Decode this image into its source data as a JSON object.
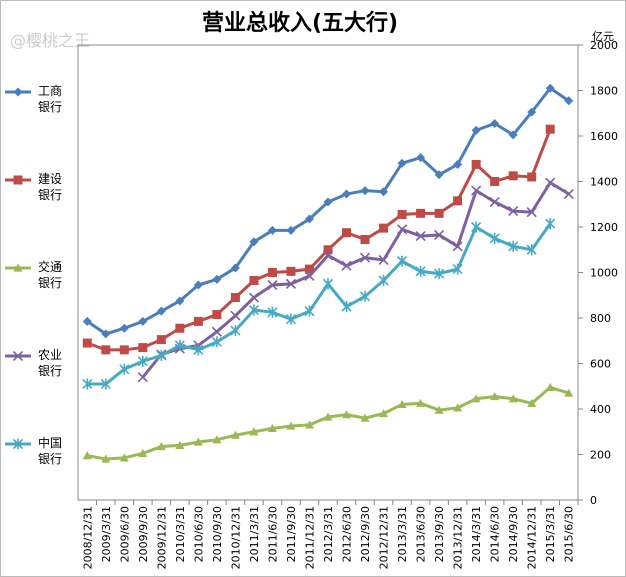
{
  "chart_data": {
    "type": "line",
    "title": "营业总收入(五大行)",
    "watermark": "@樱桃之王",
    "y_unit": "亿元",
    "categories": [
      "2008/12/31",
      "2009/3/31",
      "2009/6/30",
      "2009/9/30",
      "2009/12/31",
      "2010/3/31",
      "2010/6/30",
      "2010/9/30",
      "2010/12/31",
      "2011/3/31",
      "2011/6/30",
      "2011/9/30",
      "2011/12/31",
      "2012/3/31",
      "2012/6/30",
      "2012/9/30",
      "2012/12/31",
      "2013/3/31",
      "2013/6/30",
      "2013/9/30",
      "2013/12/31",
      "2014/3/31",
      "2014/6/30",
      "2014/9/30",
      "2014/12/31",
      "2015/3/31",
      "2015/6/30"
    ],
    "series": [
      {
        "name": "工商银行",
        "color": "#4a7ebb",
        "marker": "diamond",
        "values": [
          785,
          730,
          755,
          785,
          830,
          875,
          945,
          970,
          1020,
          1135,
          1185,
          1185,
          1235,
          1310,
          1345,
          1360,
          1355,
          1480,
          1505,
          1430,
          1475,
          1625,
          1655,
          1605,
          1705,
          1810,
          1755
        ]
      },
      {
        "name": "建设银行",
        "color": "#be4b48",
        "marker": "square",
        "values": [
          690,
          660,
          660,
          670,
          705,
          755,
          785,
          815,
          890,
          965,
          1000,
          1005,
          1015,
          1100,
          1175,
          1145,
          1195,
          1255,
          1260,
          1260,
          1315,
          1475,
          1400,
          1425,
          1420,
          1630,
          null
        ]
      },
      {
        "name": "交通银行",
        "color": "#98b954",
        "marker": "triangle",
        "values": [
          195,
          180,
          185,
          205,
          235,
          240,
          255,
          265,
          285,
          300,
          315,
          325,
          330,
          365,
          375,
          360,
          380,
          420,
          425,
          395,
          405,
          445,
          455,
          445,
          425,
          495,
          470
        ]
      },
      {
        "name": "农业银行",
        "color": "#7d60a0",
        "marker": "x",
        "values": [
          null,
          null,
          null,
          540,
          640,
          665,
          680,
          740,
          810,
          890,
          945,
          950,
          985,
          1075,
          1030,
          1065,
          1055,
          1190,
          1160,
          1165,
          1115,
          1360,
          1310,
          1270,
          1265,
          1395,
          1345
        ]
      },
      {
        "name": "中国银行",
        "color": "#46aac5",
        "marker": "star",
        "values": [
          510,
          510,
          575,
          610,
          635,
          680,
          660,
          695,
          745,
          835,
          825,
          795,
          830,
          950,
          850,
          895,
          965,
          1050,
          1005,
          995,
          1015,
          1200,
          1150,
          1115,
          1100,
          1215,
          null
        ]
      }
    ],
    "ylim": [
      0,
      2000
    ],
    "yticks": [
      0,
      200,
      400,
      600,
      800,
      1000,
      1200,
      1400,
      1600,
      1800,
      2000
    ],
    "grid": false
  }
}
